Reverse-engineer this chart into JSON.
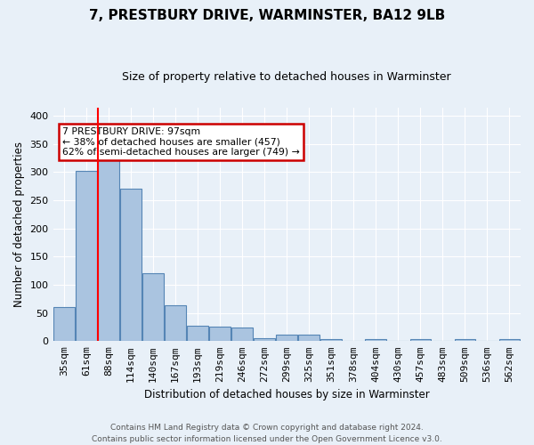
{
  "title1": "7, PRESTBURY DRIVE, WARMINSTER, BA12 9LB",
  "title2": "Size of property relative to detached houses in Warminster",
  "xlabel": "Distribution of detached houses by size in Warminster",
  "ylabel": "Number of detached properties",
  "categories": [
    "35sqm",
    "61sqm",
    "88sqm",
    "114sqm",
    "140sqm",
    "167sqm",
    "193sqm",
    "219sqm",
    "246sqm",
    "272sqm",
    "299sqm",
    "325sqm",
    "351sqm",
    "378sqm",
    "404sqm",
    "430sqm",
    "457sqm",
    "483sqm",
    "509sqm",
    "536sqm",
    "562sqm"
  ],
  "values": [
    60,
    302,
    330,
    270,
    120,
    63,
    28,
    25,
    24,
    6,
    11,
    11,
    4,
    0,
    3,
    0,
    3,
    0,
    3,
    0,
    3
  ],
  "bar_color": "#aac4e0",
  "bar_edge_color": "#5585b5",
  "bg_color": "#e8f0f8",
  "grid_color": "#ffffff",
  "annotation_text": "7 PRESTBURY DRIVE: 97sqm\n← 38% of detached houses are smaller (457)\n62% of semi-detached houses are larger (749) →",
  "annotation_box_color": "#ffffff",
  "annotation_box_edge_color": "#cc0000",
  "red_line_index": 2,
  "footer": "Contains HM Land Registry data © Crown copyright and database right 2024.\nContains public sector information licensed under the Open Government Licence v3.0.",
  "ylim": [
    0,
    415
  ],
  "yticks": [
    0,
    50,
    100,
    150,
    200,
    250,
    300,
    350,
    400
  ],
  "figsize": [
    6.0,
    5.0
  ],
  "dpi": 100
}
